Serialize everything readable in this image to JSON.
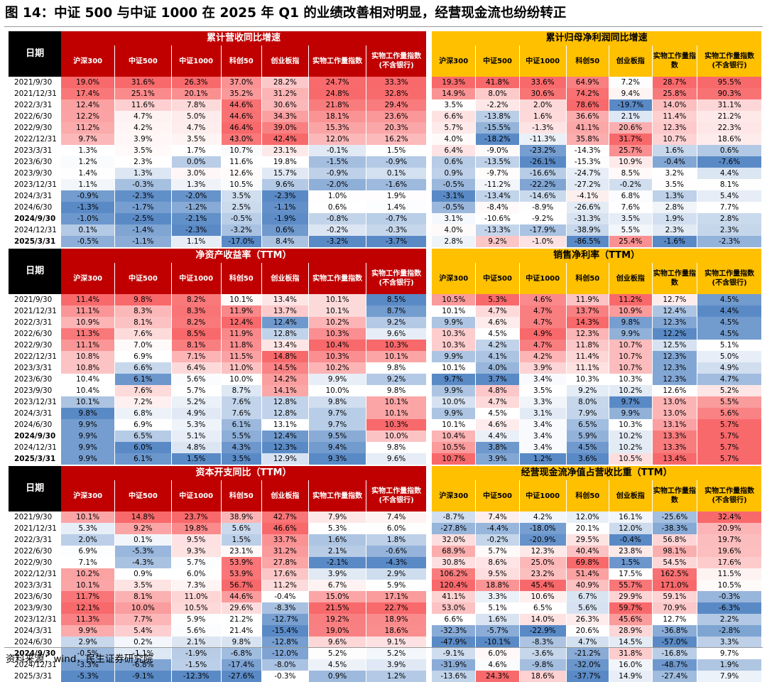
{
  "title": "图 14：中证 500 与中证 1000 在 2025 年 Q1 的业绩改善相对明显，经营现金流也纷纷转正",
  "source": "资料来源：wind，民生证券研究院",
  "riqi": "日期",
  "colors": {
    "header_red": "#c00000",
    "header_gold": "#ffc000",
    "high": "#f8696b",
    "mid": "#ffffff",
    "low": "#5a8ac6"
  },
  "cols_left": [
    "沪深300",
    "中证500",
    "中证1000",
    "科创50",
    "创业板指",
    "实物工作量指数",
    "实物工作量指数\n(不含银行)"
  ],
  "cols_right": [
    "沪深300",
    "中证500",
    "中证1000",
    "科创50",
    "创业板指",
    "实物工作量指数",
    "实物工作量指数\n(不含银行)"
  ],
  "tables": [
    {
      "left_title": "累计营收同比增速",
      "right_title": "累计归母净利润同比增速",
      "dates": [
        "2021/9/30",
        "2021/12/31",
        "2022/3/31",
        "2022/6/30",
        "2022/9/30",
        "2022/12/31",
        "2023/3/31",
        "2023/6/30",
        "2023/9/30",
        "2023/12/31",
        "2024/3/31",
        "2024/6/30",
        "2024/9/30",
        "2024/12/31",
        "2025/3/31"
      ],
      "bold": [
        false,
        false,
        false,
        false,
        false,
        false,
        false,
        false,
        false,
        false,
        false,
        false,
        true,
        false,
        true
      ],
      "left": [
        [
          "19.0%",
          "31.6%",
          "26.3%",
          "37.0%",
          "28.2%",
          "24.7%",
          "33.3%"
        ],
        [
          "17.4%",
          "25.1%",
          "20.1%",
          "35.2%",
          "31.2%",
          "24.8%",
          "32.8%"
        ],
        [
          "12.4%",
          "11.6%",
          "7.8%",
          "44.6%",
          "30.6%",
          "21.8%",
          "29.4%"
        ],
        [
          "12.2%",
          "4.7%",
          "5.0%",
          "44.6%",
          "34.3%",
          "18.1%",
          "23.6%"
        ],
        [
          "11.2%",
          "4.2%",
          "4.7%",
          "46.4%",
          "39.0%",
          "15.3%",
          "20.3%"
        ],
        [
          "9.7%",
          "3.9%",
          "3.5%",
          "43.0%",
          "42.4%",
          "12.0%",
          "16.2%"
        ],
        [
          "1.3%",
          "3.5%",
          "1.7%",
          "10.7%",
          "23.1%",
          "-0.1%",
          "1.5%"
        ],
        [
          "1.2%",
          "2.3%",
          "0.0%",
          "11.6%",
          "19.8%",
          "-1.5%",
          "-0.9%"
        ],
        [
          "1.4%",
          "1.3%",
          "3.0%",
          "12.6%",
          "15.7%",
          "-0.9%",
          "0.1%"
        ],
        [
          "1.1%",
          "-0.3%",
          "1.3%",
          "10.5%",
          "9.6%",
          "-2.0%",
          "-1.6%"
        ],
        [
          "-0.9%",
          "-2.3%",
          "-2.0%",
          "3.5%",
          "-2.3%",
          "1.0%",
          "1.9%"
        ],
        [
          "-1.3%",
          "-1.7%",
          "-1.2%",
          "2.5%",
          "-1.1%",
          "0.6%",
          "1.4%"
        ],
        [
          "-1.0%",
          "-2.5%",
          "-2.1%",
          "-0.5%",
          "-1.9%",
          "-0.8%",
          "-0.7%"
        ],
        [
          "0.1%",
          "-1.4%",
          "-2.3%",
          "-3.2%",
          "0.6%",
          "-0.2%",
          "-0.3%"
        ],
        [
          "-0.5%",
          "-1.1%",
          "1.1%",
          "-17.0%",
          "8.4%",
          "-3.2%",
          "-3.7%"
        ]
      ],
      "right": [
        [
          "19.3%",
          "41.8%",
          "33.6%",
          "64.9%",
          "7.2%",
          "28.7%",
          "95.5%"
        ],
        [
          "14.9%",
          "8.0%",
          "30.6%",
          "74.2%",
          "9.4%",
          "25.8%",
          "90.3%"
        ],
        [
          "3.5%",
          "-2.2%",
          "2.0%",
          "78.6%",
          "-19.7%",
          "14.0%",
          "31.1%"
        ],
        [
          "6.6%",
          "-13.8%",
          "1.6%",
          "36.6%",
          "2.1%",
          "11.4%",
          "21.2%"
        ],
        [
          "5.7%",
          "-15.5%",
          "-1.3%",
          "41.1%",
          "20.6%",
          "12.3%",
          "22.3%"
        ],
        [
          "4.0%",
          "-18.2%",
          "-11.3%",
          "35.8%",
          "31.7%",
          "10.7%",
          "18.6%"
        ],
        [
          "6.4%",
          "-9.0%",
          "-23.2%",
          "-14.3%",
          "25.7%",
          "1.6%",
          "0.6%"
        ],
        [
          "0.6%",
          "-13.5%",
          "-26.1%",
          "-15.3%",
          "10.9%",
          "-0.4%",
          "-7.6%"
        ],
        [
          "0.9%",
          "-9.7%",
          "-16.6%",
          "-24.7%",
          "8.5%",
          "3.2%",
          "4.4%"
        ],
        [
          "-0.5%",
          "-11.2%",
          "-22.2%",
          "-27.2%",
          "-0.2%",
          "3.5%",
          "8.1%"
        ],
        [
          "-3.1%",
          "-13.4%",
          "-14.6%",
          "-4.1%",
          "6.8%",
          "1.3%",
          "5.4%"
        ],
        [
          "-0.5%",
          "-8.4%",
          "-8.9%",
          "-26.6%",
          "7.6%",
          "2.8%",
          "7.7%"
        ],
        [
          "3.1%",
          "-10.6%",
          "-9.2%",
          "-31.3%",
          "3.5%",
          "1.9%",
          "2.8%"
        ],
        [
          "4.0%",
          "-13.3%",
          "-17.9%",
          "-38.9%",
          "5.5%",
          "2.3%",
          "2.3%"
        ],
        [
          "2.8%",
          "9.2%",
          "-1.0%",
          "-86.5%",
          "25.4%",
          "-1.6%",
          "-2.3%"
        ]
      ]
    },
    {
      "left_title": "净资产收益率（TTM）",
      "right_title": "销售净利率（TTM）",
      "dates": [
        "2021/9/30",
        "2021/12/31",
        "2022/3/31",
        "2022/6/30",
        "2022/9/30",
        "2022/12/31",
        "2023/3/31",
        "2023/6/30",
        "2023/9/30",
        "2023/12/31",
        "2024/3/31",
        "2024/6/30",
        "2024/9/30",
        "2024/12/31",
        "2025/3/31"
      ],
      "bold": [
        false,
        false,
        false,
        false,
        false,
        false,
        false,
        false,
        false,
        false,
        false,
        false,
        true,
        false,
        true
      ],
      "left": [
        [
          "11.4%",
          "9.8%",
          "8.2%",
          "10.1%",
          "13.4%",
          "10.1%",
          "8.5%"
        ],
        [
          "11.1%",
          "8.3%",
          "8.3%",
          "11.9%",
          "13.7%",
          "10.1%",
          "8.7%"
        ],
        [
          "10.9%",
          "8.1%",
          "8.2%",
          "12.4%",
          "12.4%",
          "10.2%",
          "9.2%"
        ],
        [
          "11.3%",
          "7.6%",
          "8.5%",
          "11.9%",
          "12.8%",
          "10.3%",
          "9.6%"
        ],
        [
          "11.1%",
          "7.0%",
          "8.1%",
          "11.8%",
          "13.4%",
          "10.4%",
          "10.3%"
        ],
        [
          "10.8%",
          "6.9%",
          "7.1%",
          "11.5%",
          "14.8%",
          "10.3%",
          "10.1%"
        ],
        [
          "10.8%",
          "6.6%",
          "6.4%",
          "11.0%",
          "14.5%",
          "10.2%",
          "9.8%"
        ],
        [
          "10.4%",
          "6.1%",
          "5.6%",
          "10.0%",
          "14.2%",
          "9.9%",
          "9.2%"
        ],
        [
          "10.4%",
          "7.6%",
          "5.7%",
          "8.7%",
          "14.1%",
          "10.0%",
          "9.8%"
        ],
        [
          "10.1%",
          "7.2%",
          "5.2%",
          "7.6%",
          "12.8%",
          "9.8%",
          "10.1%"
        ],
        [
          "9.8%",
          "6.8%",
          "4.9%",
          "7.6%",
          "12.8%",
          "9.7%",
          "10.1%"
        ],
        [
          "9.9%",
          "6.9%",
          "5.3%",
          "6.1%",
          "13.1%",
          "9.7%",
          "10.3%"
        ],
        [
          "9.9%",
          "6.5%",
          "5.1%",
          "5.5%",
          "12.4%",
          "9.5%",
          "10.0%"
        ],
        [
          "9.9%",
          "6.0%",
          "4.8%",
          "4.3%",
          "12.3%",
          "9.4%",
          "9.8%"
        ],
        [
          "9.9%",
          "6.1%",
          "1.5%",
          "3.5%",
          "12.9%",
          "9.3%",
          "9.6%"
        ]
      ],
      "right": [
        [
          "10.5%",
          "5.3%",
          "4.6%",
          "11.9%",
          "11.2%",
          "12.7%",
          "4.5%"
        ],
        [
          "10.1%",
          "4.7%",
          "4.7%",
          "13.7%",
          "10.9%",
          "12.4%",
          "4.4%"
        ],
        [
          "9.9%",
          "4.6%",
          "4.7%",
          "14.3%",
          "9.8%",
          "12.3%",
          "4.5%"
        ],
        [
          "10.3%",
          "4.5%",
          "4.9%",
          "12.3%",
          "9.9%",
          "12.2%",
          "4.5%"
        ],
        [
          "10.3%",
          "4.2%",
          "4.7%",
          "11.8%",
          "10.7%",
          "12.5%",
          "5.1%"
        ],
        [
          "9.9%",
          "4.1%",
          "4.2%",
          "11.4%",
          "10.7%",
          "12.3%",
          "5.0%"
        ],
        [
          "10.1%",
          "4.0%",
          "3.9%",
          "11.1%",
          "10.7%",
          "12.3%",
          "4.9%"
        ],
        [
          "9.7%",
          "3.7%",
          "3.4%",
          "10.3%",
          "10.3%",
          "12.3%",
          "4.7%"
        ],
        [
          "9.9%",
          "4.8%",
          "3.5%",
          "9.2%",
          "10.2%",
          "12.6%",
          "5.2%"
        ],
        [
          "10.0%",
          "4.7%",
          "3.3%",
          "8.0%",
          "9.7%",
          "13.0%",
          "5.5%"
        ],
        [
          "9.9%",
          "4.5%",
          "3.1%",
          "7.9%",
          "9.9%",
          "13.0%",
          "5.6%"
        ],
        [
          "10.1%",
          "4.6%",
          "3.4%",
          "6.5%",
          "10.3%",
          "13.1%",
          "5.7%"
        ],
        [
          "10.4%",
          "4.4%",
          "3.4%",
          "5.9%",
          "10.2%",
          "13.3%",
          "5.7%"
        ],
        [
          "10.5%",
          "3.8%",
          "3.4%",
          "4.5%",
          "10.2%",
          "13.3%",
          "5.7%"
        ],
        [
          "10.7%",
          "3.9%",
          "1.2%",
          "3.6%",
          "10.5%",
          "13.4%",
          "5.7%"
        ]
      ]
    },
    {
      "left_title": "资本开支同比（TTM）",
      "right_title": "经营现金流净值占营收比重（TTM）",
      "dates": [
        "2021/9/30",
        "2021/12/31",
        "2022/3/31",
        "2022/6/30",
        "2022/9/30",
        "2022/12/31",
        "2023/3/31",
        "2023/6/30",
        "2023/9/30",
        "2023/12/31",
        "2024/3/31",
        "2024/6/30",
        "2024/9/30",
        "2024/12/31",
        "2025/3/31"
      ],
      "bold": [
        false,
        false,
        false,
        false,
        false,
        false,
        false,
        false,
        false,
        false,
        false,
        false,
        true,
        false,
        false
      ],
      "left": [
        [
          "10.1%",
          "14.8%",
          "23.7%",
          "38.9%",
          "42.7%",
          "7.9%",
          "7.4%"
        ],
        [
          "5.3%",
          "9.2%",
          "19.8%",
          "5.6%",
          "46.6%",
          "5.3%",
          "6.0%"
        ],
        [
          "2.0%",
          "0.1%",
          "9.5%",
          "1.5%",
          "33.7%",
          "1.6%",
          "1.8%"
        ],
        [
          "6.9%",
          "-5.3%",
          "9.3%",
          "23.1%",
          "31.2%",
          "2.1%",
          "-0.6%"
        ],
        [
          "7.1%",
          "-4.3%",
          "5.7%",
          "53.9%",
          "27.8%",
          "-2.1%",
          "-4.3%"
        ],
        [
          "10.2%",
          "0.9%",
          "6.0%",
          "53.9%",
          "17.6%",
          "3.9%",
          "2.9%"
        ],
        [
          "10.1%",
          "3.5%",
          "7.3%",
          "56.7%",
          "11.2%",
          "6.7%",
          "5.9%"
        ],
        [
          "11.7%",
          "8.1%",
          "11.0%",
          "44.6%",
          "-0.4%",
          "15.0%",
          "17.1%"
        ],
        [
          "12.1%",
          "10.0%",
          "10.5%",
          "29.6%",
          "-8.3%",
          "21.5%",
          "22.7%"
        ],
        [
          "11.3%",
          "7.7%",
          "5.9%",
          "21.2%",
          "-12.7%",
          "19.2%",
          "18.9%"
        ],
        [
          "9.9%",
          "5.4%",
          "5.6%",
          "21.4%",
          "-15.4%",
          "19.0%",
          "18.6%"
        ],
        [
          "2.9%",
          "0.2%",
          "2.1%",
          "9.8%",
          "-12.8%",
          "9.6%",
          "9.1%"
        ],
        [
          "-0.5%",
          "-1.1%",
          "-1.9%",
          "-6.8%",
          "-12.0%",
          "5.2%",
          "5.2%"
        ],
        [
          "-3.3%",
          "-6.8%",
          "-1.5%",
          "-17.4%",
          "-8.0%",
          "4.5%",
          "3.9%"
        ],
        [
          "-5.3%",
          "-9.1%",
          "-12.3%",
          "-27.6%",
          "-0.3%",
          "0.9%",
          "1.2%"
        ]
      ],
      "right": [
        [
          "-8.7%",
          "7.4%",
          "4.2%",
          "12.0%",
          "16.1%",
          "-25.6%",
          "32.4%"
        ],
        [
          "-27.8%",
          "-4.4%",
          "-18.0%",
          "20.1%",
          "12.0%",
          "-38.3%",
          "20.9%"
        ],
        [
          "32.0%",
          "-0.2%",
          "-20.9%",
          "29.5%",
          "-0.4%",
          "56.8%",
          "19.7%"
        ],
        [
          "68.9%",
          "5.7%",
          "12.3%",
          "40.4%",
          "23.8%",
          "98.1%",
          "19.6%"
        ],
        [
          "30.8%",
          "8.6%",
          "25.0%",
          "69.8%",
          "1.5%",
          "54.5%",
          "17.6%"
        ],
        [
          "106.2%",
          "9.5%",
          "23.2%",
          "51.4%",
          "17.5%",
          "162.5%",
          "11.5%"
        ],
        [
          "120.4%",
          "18.8%",
          "45.4%",
          "40.9%",
          "55.7%",
          "171.0%",
          "10.5%"
        ],
        [
          "41.1%",
          "3.3%",
          "10.6%",
          "6.7%",
          "29.9%",
          "59.1%",
          "-0.3%"
        ],
        [
          "53.0%",
          "5.1%",
          "6.5%",
          "5.6%",
          "59.7%",
          "70.9%",
          "-6.3%"
        ],
        [
          "6.6%",
          "1.6%",
          "14.0%",
          "26.3%",
          "45.6%",
          "12.7%",
          "2.2%"
        ],
        [
          "-32.3%",
          "-5.7%",
          "-22.9%",
          "20.6%",
          "28.9%",
          "-36.8%",
          "-2.8%"
        ],
        [
          "-47.9%",
          "-10.1%",
          "-8.3%",
          "4.7%",
          "14.5%",
          "-57.0%",
          "3.3%"
        ],
        [
          "-9.1%",
          "6.0%",
          "-3.6%",
          "-21.2%",
          "31.8%",
          "-16.8%",
          "9.7%"
        ],
        [
          "-31.9%",
          "4.6%",
          "-9.8%",
          "-32.0%",
          "16.0%",
          "-48.7%",
          "1.9%"
        ],
        [
          "-13.6%",
          "24.3%",
          "18.6%",
          "-37.7%",
          "14.9%",
          "-27.4%",
          "7.9%"
        ]
      ]
    }
  ]
}
